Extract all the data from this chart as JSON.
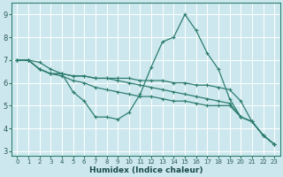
{
  "xlabel": "Humidex (Indice chaleur)",
  "bg_color": "#cce8ee",
  "grid_color": "#ffffff",
  "line_color": "#2e7d6e",
  "xlim": [
    -0.5,
    23.5
  ],
  "ylim": [
    2.8,
    9.5
  ],
  "xticks": [
    0,
    1,
    2,
    3,
    4,
    5,
    6,
    7,
    8,
    9,
    10,
    11,
    12,
    13,
    14,
    15,
    16,
    17,
    18,
    19,
    20,
    21,
    22,
    23
  ],
  "yticks": [
    3,
    4,
    5,
    6,
    7,
    8,
    9
  ],
  "lines": [
    {
      "x": [
        0,
        1,
        2,
        3,
        4,
        5,
        6,
        7,
        8,
        9,
        10,
        11,
        12,
        13,
        14,
        15,
        16,
        17,
        18,
        19,
        20,
        21,
        22,
        23
      ],
      "y": [
        7.0,
        7.0,
        6.9,
        6.6,
        6.4,
        6.3,
        6.3,
        6.2,
        6.2,
        6.2,
        6.2,
        6.1,
        6.1,
        6.1,
        6.0,
        6.0,
        5.9,
        5.9,
        5.8,
        5.7,
        5.2,
        4.3,
        3.7,
        3.3
      ]
    },
    {
      "x": [
        0,
        1,
        2,
        3,
        4,
        5,
        6,
        7,
        8,
        9,
        10,
        11,
        12,
        13,
        14,
        15,
        16,
        17,
        18,
        19,
        20,
        21,
        22,
        23
      ],
      "y": [
        7.0,
        7.0,
        6.6,
        6.4,
        6.4,
        6.3,
        6.3,
        6.2,
        6.2,
        6.1,
        6.0,
        5.9,
        5.8,
        5.7,
        5.6,
        5.5,
        5.4,
        5.3,
        5.2,
        5.1,
        4.5,
        4.3,
        3.7,
        3.3
      ]
    },
    {
      "x": [
        0,
        1,
        2,
        3,
        4,
        5,
        6,
        7,
        8,
        9,
        10,
        11,
        12,
        13,
        14,
        15,
        16,
        17,
        18,
        19,
        20,
        21,
        22,
        23
      ],
      "y": [
        7.0,
        7.0,
        6.6,
        6.4,
        6.3,
        6.1,
        6.0,
        5.8,
        5.7,
        5.6,
        5.5,
        5.4,
        5.4,
        5.3,
        5.2,
        5.2,
        5.1,
        5.0,
        5.0,
        5.0,
        4.5,
        4.3,
        3.7,
        3.3
      ]
    },
    {
      "x": [
        0,
        1,
        2,
        3,
        4,
        5,
        6,
        7,
        8,
        9,
        10,
        11,
        12,
        13,
        14,
        15,
        16,
        17,
        18,
        19,
        20,
        21,
        22,
        23
      ],
      "y": [
        7.0,
        7.0,
        6.6,
        6.4,
        6.4,
        5.6,
        5.2,
        4.5,
        4.5,
        4.4,
        4.7,
        5.5,
        6.7,
        7.8,
        8.0,
        9.0,
        8.3,
        7.3,
        6.6,
        5.3,
        4.5,
        4.3,
        3.7,
        3.3
      ]
    }
  ]
}
